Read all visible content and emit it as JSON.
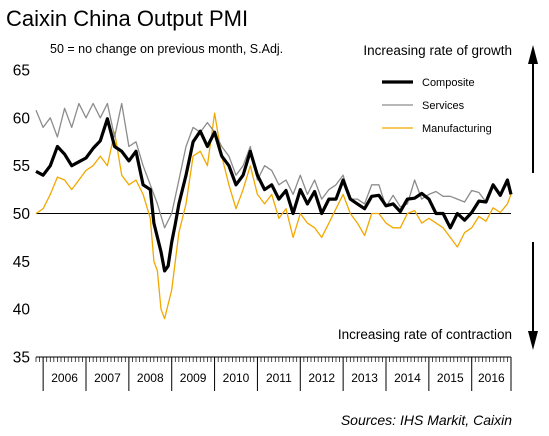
{
  "chart_data": {
    "type": "line",
    "title": "Caixin China Output PMI",
    "subtitle": "50 = no change on previous month, S.Adj.",
    "annotation_top": "Increasing rate of growth",
    "annotation_bottom": "Increasing rate of contraction",
    "source": "Sources: IHS Markit, Caixin",
    "ylim": [
      35,
      65
    ],
    "yticks": [
      "35",
      "40",
      "45",
      "50",
      "55",
      "60",
      "65"
    ],
    "reference_line": 50,
    "x_start": "2005-11",
    "x_end": "2016-12",
    "year_labels": [
      "2006",
      "2007",
      "2008",
      "2009",
      "2010",
      "2011",
      "2012",
      "2013",
      "2014",
      "2015",
      "2016"
    ],
    "legend_position": "top-right",
    "grid": false,
    "series": [
      {
        "name": "Composite",
        "color": "#000000",
        "points": [
          [
            "2005-11",
            54.4
          ],
          [
            "2006-01",
            54.0
          ],
          [
            "2006-03",
            55.0
          ],
          [
            "2006-05",
            57.0
          ],
          [
            "2006-07",
            56.2
          ],
          [
            "2006-09",
            55.0
          ],
          [
            "2006-11",
            55.4
          ],
          [
            "2007-01",
            55.8
          ],
          [
            "2007-03",
            56.8
          ],
          [
            "2007-05",
            57.6
          ],
          [
            "2007-07",
            59.9
          ],
          [
            "2007-09",
            57.0
          ],
          [
            "2007-11",
            56.5
          ],
          [
            "2008-01",
            55.5
          ],
          [
            "2008-03",
            56.5
          ],
          [
            "2008-05",
            53.0
          ],
          [
            "2008-07",
            52.5
          ],
          [
            "2008-08",
            49.0
          ],
          [
            "2008-10",
            46.0
          ],
          [
            "2008-11",
            44.0
          ],
          [
            "2008-12",
            44.5
          ],
          [
            "2009-01",
            47.0
          ],
          [
            "2009-02",
            48.9
          ],
          [
            "2009-03",
            51.0
          ],
          [
            "2009-05",
            54.0
          ],
          [
            "2009-07",
            57.5
          ],
          [
            "2009-09",
            58.6
          ],
          [
            "2009-11",
            57.0
          ],
          [
            "2010-01",
            58.5
          ],
          [
            "2010-03",
            56.0
          ],
          [
            "2010-05",
            55.0
          ],
          [
            "2010-07",
            53.0
          ],
          [
            "2010-09",
            54.0
          ],
          [
            "2010-11",
            56.5
          ],
          [
            "2011-01",
            54.0
          ],
          [
            "2011-03",
            52.5
          ],
          [
            "2011-05",
            53.0
          ],
          [
            "2011-07",
            51.5
          ],
          [
            "2011-09",
            52.4
          ],
          [
            "2011-11",
            50.0
          ],
          [
            "2012-01",
            52.5
          ],
          [
            "2012-03",
            51.0
          ],
          [
            "2012-05",
            52.3
          ],
          [
            "2012-07",
            50.0
          ],
          [
            "2012-09",
            51.5
          ],
          [
            "2012-11",
            51.5
          ],
          [
            "2013-01",
            53.5
          ],
          [
            "2013-03",
            51.5
          ],
          [
            "2013-05",
            51.0
          ],
          [
            "2013-07",
            50.5
          ],
          [
            "2013-09",
            51.8
          ],
          [
            "2013-11",
            51.9
          ],
          [
            "2014-01",
            50.8
          ],
          [
            "2014-03",
            51.0
          ],
          [
            "2014-05",
            50.2
          ],
          [
            "2014-07",
            51.5
          ],
          [
            "2014-09",
            51.6
          ],
          [
            "2014-11",
            52.1
          ],
          [
            "2015-01",
            51.5
          ],
          [
            "2015-03",
            50.0
          ],
          [
            "2015-05",
            50.0
          ],
          [
            "2015-07",
            48.5
          ],
          [
            "2015-09",
            50.0
          ],
          [
            "2015-11",
            49.3
          ],
          [
            "2016-01",
            50.1
          ],
          [
            "2016-03",
            51.3
          ],
          [
            "2016-05",
            51.2
          ],
          [
            "2016-07",
            53.0
          ],
          [
            "2016-09",
            51.9
          ],
          [
            "2016-11",
            53.5
          ],
          [
            "2016-12",
            52.0
          ]
        ]
      },
      {
        "name": "Services",
        "color": "#8c8c8c",
        "points": [
          [
            "2005-11",
            60.8
          ],
          [
            "2006-01",
            59.0
          ],
          [
            "2006-03",
            60.0
          ],
          [
            "2006-05",
            58.0
          ],
          [
            "2006-07",
            61.0
          ],
          [
            "2006-09",
            59.0
          ],
          [
            "2006-11",
            61.5
          ],
          [
            "2007-01",
            60.0
          ],
          [
            "2007-03",
            61.5
          ],
          [
            "2007-05",
            60.0
          ],
          [
            "2007-07",
            61.5
          ],
          [
            "2007-09",
            58.0
          ],
          [
            "2007-11",
            61.5
          ],
          [
            "2008-01",
            57.0
          ],
          [
            "2008-03",
            57.5
          ],
          [
            "2008-05",
            55.0
          ],
          [
            "2008-07",
            53.0
          ],
          [
            "2008-09",
            51.0
          ],
          [
            "2008-11",
            48.5
          ],
          [
            "2009-01",
            50.0
          ],
          [
            "2009-03",
            53.5
          ],
          [
            "2009-05",
            57.0
          ],
          [
            "2009-07",
            59.0
          ],
          [
            "2009-09",
            58.5
          ],
          [
            "2009-11",
            59.5
          ],
          [
            "2010-01",
            58.5
          ],
          [
            "2010-03",
            57.0
          ],
          [
            "2010-05",
            56.0
          ],
          [
            "2010-07",
            54.0
          ],
          [
            "2010-09",
            55.0
          ],
          [
            "2010-11",
            57.0
          ],
          [
            "2011-01",
            53.5
          ],
          [
            "2011-03",
            55.0
          ],
          [
            "2011-05",
            54.5
          ],
          [
            "2011-07",
            53.0
          ],
          [
            "2011-09",
            53.5
          ],
          [
            "2011-11",
            52.0
          ],
          [
            "2012-01",
            54.0
          ],
          [
            "2012-03",
            52.0
          ],
          [
            "2012-05",
            53.5
          ],
          [
            "2012-07",
            51.5
          ],
          [
            "2012-09",
            52.5
          ],
          [
            "2012-11",
            53.0
          ],
          [
            "2013-01",
            54.0
          ],
          [
            "2013-03",
            51.5
          ],
          [
            "2013-05",
            51.5
          ],
          [
            "2013-07",
            51.0
          ],
          [
            "2013-09",
            53.0
          ],
          [
            "2013-11",
            53.0
          ],
          [
            "2014-01",
            50.7
          ],
          [
            "2014-03",
            51.9
          ],
          [
            "2014-05",
            50.7
          ],
          [
            "2014-07",
            51.0
          ],
          [
            "2014-09",
            53.5
          ],
          [
            "2014-11",
            51.5
          ],
          [
            "2015-01",
            52.0
          ],
          [
            "2015-03",
            52.3
          ],
          [
            "2015-05",
            51.8
          ],
          [
            "2015-07",
            51.8
          ],
          [
            "2015-09",
            51.5
          ],
          [
            "2015-11",
            51.2
          ],
          [
            "2016-01",
            52.4
          ],
          [
            "2016-03",
            52.2
          ],
          [
            "2016-05",
            51.2
          ],
          [
            "2016-07",
            53.0
          ],
          [
            "2016-09",
            52.0
          ],
          [
            "2016-11",
            53.1
          ],
          [
            "2016-12",
            52.3
          ]
        ]
      },
      {
        "name": "Manufacturing",
        "color": "#f2a800",
        "points": [
          [
            "2005-11",
            50.0
          ],
          [
            "2006-01",
            50.5
          ],
          [
            "2006-03",
            52.0
          ],
          [
            "2006-05",
            53.8
          ],
          [
            "2006-07",
            53.5
          ],
          [
            "2006-09",
            52.5
          ],
          [
            "2006-11",
            53.5
          ],
          [
            "2007-01",
            54.5
          ],
          [
            "2007-03",
            55.0
          ],
          [
            "2007-05",
            56.0
          ],
          [
            "2007-07",
            55.0
          ],
          [
            "2007-09",
            58.5
          ],
          [
            "2007-11",
            54.0
          ],
          [
            "2008-01",
            53.0
          ],
          [
            "2008-03",
            53.5
          ],
          [
            "2008-05",
            52.0
          ],
          [
            "2008-07",
            49.5
          ],
          [
            "2008-08",
            45.0
          ],
          [
            "2008-09",
            44.0
          ],
          [
            "2008-10",
            40.0
          ],
          [
            "2008-11",
            39.0
          ],
          [
            "2008-12",
            40.5
          ],
          [
            "2009-01",
            42.0
          ],
          [
            "2009-02",
            45.0
          ],
          [
            "2009-03",
            48.0
          ],
          [
            "2009-05",
            51.0
          ],
          [
            "2009-07",
            56.0
          ],
          [
            "2009-09",
            56.5
          ],
          [
            "2009-11",
            55.0
          ],
          [
            "2010-01",
            60.5
          ],
          [
            "2010-03",
            56.0
          ],
          [
            "2010-05",
            53.0
          ],
          [
            "2010-07",
            50.5
          ],
          [
            "2010-09",
            52.5
          ],
          [
            "2010-11",
            55.0
          ],
          [
            "2011-01",
            52.0
          ],
          [
            "2011-03",
            51.0
          ],
          [
            "2011-05",
            52.0
          ],
          [
            "2011-07",
            49.5
          ],
          [
            "2011-09",
            50.5
          ],
          [
            "2011-11",
            47.5
          ],
          [
            "2012-01",
            50.0
          ],
          [
            "2012-03",
            49.0
          ],
          [
            "2012-05",
            48.5
          ],
          [
            "2012-07",
            47.5
          ],
          [
            "2012-09",
            49.0
          ],
          [
            "2012-11",
            50.5
          ],
          [
            "2013-01",
            52.0
          ],
          [
            "2013-03",
            50.0
          ],
          [
            "2013-05",
            49.0
          ],
          [
            "2013-07",
            47.7
          ],
          [
            "2013-09",
            50.0
          ],
          [
            "2013-11",
            50.0
          ],
          [
            "2014-01",
            49.0
          ],
          [
            "2014-03",
            48.5
          ],
          [
            "2014-05",
            48.5
          ],
          [
            "2014-07",
            50.0
          ],
          [
            "2014-09",
            50.3
          ],
          [
            "2014-11",
            49.0
          ],
          [
            "2015-01",
            49.5
          ],
          [
            "2015-03",
            49.0
          ],
          [
            "2015-05",
            48.5
          ],
          [
            "2015-07",
            47.5
          ],
          [
            "2015-09",
            46.5
          ],
          [
            "2015-11",
            48.0
          ],
          [
            "2016-01",
            48.5
          ],
          [
            "2016-03",
            49.7
          ],
          [
            "2016-05",
            49.2
          ],
          [
            "2016-07",
            50.6
          ],
          [
            "2016-09",
            50.1
          ],
          [
            "2016-11",
            51.0
          ],
          [
            "2016-12",
            52.0
          ]
        ]
      }
    ]
  }
}
